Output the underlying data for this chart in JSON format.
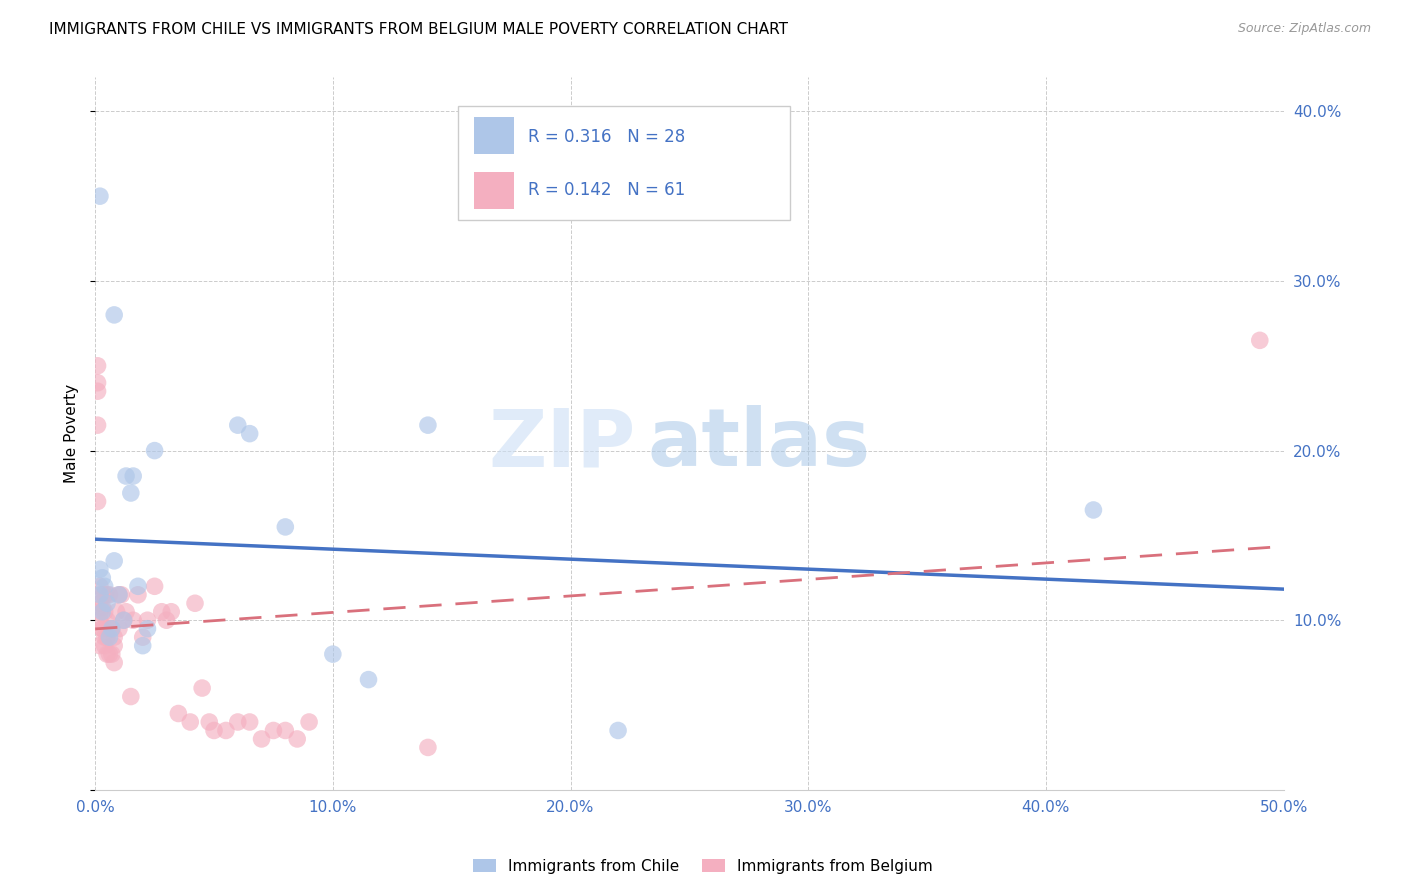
{
  "title": "IMMIGRANTS FROM CHILE VS IMMIGRANTS FROM BELGIUM MALE POVERTY CORRELATION CHART",
  "source": "Source: ZipAtlas.com",
  "ylabel": "Male Poverty",
  "xlim": [
    0,
    0.5
  ],
  "ylim": [
    0,
    0.42
  ],
  "xticks": [
    0.0,
    0.1,
    0.2,
    0.3,
    0.4,
    0.5
  ],
  "yticks": [
    0.0,
    0.1,
    0.2,
    0.3,
    0.4
  ],
  "xtick_labels": [
    "0.0%",
    "10.0%",
    "20.0%",
    "30.0%",
    "40.0%",
    "50.0%"
  ],
  "ytick_labels": [
    "",
    "10.0%",
    "20.0%",
    "30.0%",
    "40.0%"
  ],
  "watermark_zip": "ZIP",
  "watermark_atlas": "atlas",
  "legend_r1": "R = 0.316",
  "legend_n1": "N = 28",
  "legend_r2": "R = 0.142",
  "legend_n2": "N = 61",
  "legend_label1": "Immigrants from Chile",
  "legend_label2": "Immigrants from Belgium",
  "color_chile": "#aec6e8",
  "color_belgium": "#f4afc0",
  "line_chile": "#4472c4",
  "line_belgium": "#d9707c",
  "chile_x": [
    0.002,
    0.002,
    0.003,
    0.003,
    0.004,
    0.005,
    0.006,
    0.007,
    0.008,
    0.01,
    0.012,
    0.013,
    0.015,
    0.016,
    0.018,
    0.02,
    0.022,
    0.025,
    0.06,
    0.065,
    0.08,
    0.1,
    0.115,
    0.14,
    0.22,
    0.42,
    0.002,
    0.008
  ],
  "chile_y": [
    0.115,
    0.13,
    0.105,
    0.125,
    0.12,
    0.11,
    0.09,
    0.095,
    0.135,
    0.115,
    0.1,
    0.185,
    0.175,
    0.185,
    0.12,
    0.085,
    0.095,
    0.2,
    0.215,
    0.21,
    0.155,
    0.08,
    0.065,
    0.215,
    0.035,
    0.165,
    0.35,
    0.28
  ],
  "belgium_x": [
    0.001,
    0.001,
    0.001,
    0.001,
    0.001,
    0.002,
    0.002,
    0.002,
    0.002,
    0.002,
    0.003,
    0.003,
    0.003,
    0.003,
    0.004,
    0.004,
    0.004,
    0.004,
    0.005,
    0.005,
    0.005,
    0.005,
    0.006,
    0.006,
    0.006,
    0.007,
    0.007,
    0.008,
    0.008,
    0.008,
    0.009,
    0.01,
    0.01,
    0.011,
    0.012,
    0.013,
    0.015,
    0.016,
    0.018,
    0.02,
    0.022,
    0.025,
    0.028,
    0.03,
    0.032,
    0.035,
    0.04,
    0.042,
    0.045,
    0.048,
    0.05,
    0.055,
    0.06,
    0.065,
    0.07,
    0.075,
    0.08,
    0.085,
    0.09,
    0.14,
    0.49
  ],
  "belgium_y": [
    0.235,
    0.25,
    0.24,
    0.215,
    0.17,
    0.12,
    0.11,
    0.105,
    0.1,
    0.085,
    0.095,
    0.115,
    0.108,
    0.095,
    0.105,
    0.115,
    0.085,
    0.09,
    0.08,
    0.09,
    0.1,
    0.115,
    0.08,
    0.115,
    0.095,
    0.08,
    0.095,
    0.085,
    0.09,
    0.075,
    0.105,
    0.115,
    0.095,
    0.115,
    0.1,
    0.105,
    0.055,
    0.1,
    0.115,
    0.09,
    0.1,
    0.12,
    0.105,
    0.1,
    0.105,
    0.045,
    0.04,
    0.11,
    0.06,
    0.04,
    0.035,
    0.035,
    0.04,
    0.04,
    0.03,
    0.035,
    0.035,
    0.03,
    0.04,
    0.025,
    0.265
  ]
}
